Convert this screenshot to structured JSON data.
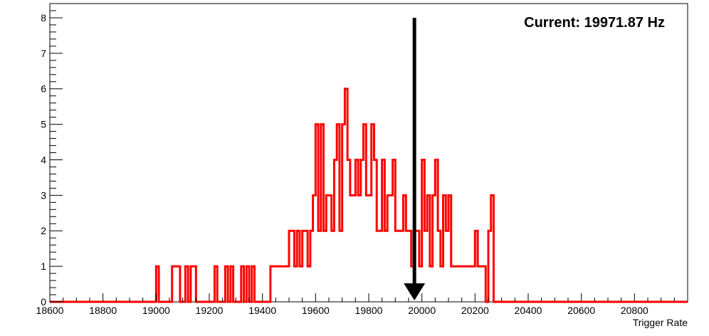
{
  "chart_data": {
    "type": "histogram",
    "title": "",
    "xlabel": "Trigger Rate",
    "ylabel": "",
    "xlim": [
      18600,
      21000
    ],
    "ylim": [
      0,
      8.4
    ],
    "x_ticks": [
      18600,
      18800,
      19000,
      19200,
      19400,
      19600,
      19800,
      20000,
      20200,
      20400,
      20600,
      20800
    ],
    "y_ticks": [
      0,
      1,
      2,
      3,
      4,
      5,
      6,
      7,
      8
    ],
    "grid": false,
    "bin_width": 10,
    "series": [
      {
        "color": "#ff0000",
        "bins": [
          [
            19000,
            1
          ],
          [
            19060,
            1
          ],
          [
            19070,
            1
          ],
          [
            19080,
            1
          ],
          [
            19110,
            1
          ],
          [
            19130,
            1
          ],
          [
            19140,
            1
          ],
          [
            19220,
            1
          ],
          [
            19260,
            1
          ],
          [
            19280,
            1
          ],
          [
            19320,
            1
          ],
          [
            19340,
            1
          ],
          [
            19360,
            1
          ],
          [
            19430,
            1
          ],
          [
            19440,
            1
          ],
          [
            19450,
            1
          ],
          [
            19460,
            1
          ],
          [
            19470,
            1
          ],
          [
            19480,
            1
          ],
          [
            19490,
            1
          ],
          [
            19500,
            2
          ],
          [
            19510,
            2
          ],
          [
            19520,
            1
          ],
          [
            19530,
            2
          ],
          [
            19540,
            1
          ],
          [
            19550,
            2
          ],
          [
            19560,
            2
          ],
          [
            19570,
            1
          ],
          [
            19580,
            2
          ],
          [
            19590,
            3
          ],
          [
            19600,
            5
          ],
          [
            19610,
            2
          ],
          [
            19620,
            5
          ],
          [
            19630,
            2
          ],
          [
            19640,
            3
          ],
          [
            19650,
            3
          ],
          [
            19660,
            2
          ],
          [
            19670,
            4
          ],
          [
            19680,
            5
          ],
          [
            19690,
            2
          ],
          [
            19700,
            5
          ],
          [
            19710,
            6
          ],
          [
            19720,
            4
          ],
          [
            19730,
            3
          ],
          [
            19740,
            3
          ],
          [
            19750,
            4
          ],
          [
            19760,
            3
          ],
          [
            19770,
            4
          ],
          [
            19780,
            5
          ],
          [
            19790,
            3
          ],
          [
            19800,
            3
          ],
          [
            19810,
            5
          ],
          [
            19820,
            4
          ],
          [
            19830,
            2
          ],
          [
            19840,
            2
          ],
          [
            19850,
            4
          ],
          [
            19860,
            2
          ],
          [
            19870,
            3
          ],
          [
            19880,
            3
          ],
          [
            19890,
            4
          ],
          [
            19900,
            2
          ],
          [
            19910,
            2
          ],
          [
            19920,
            2
          ],
          [
            19930,
            3
          ],
          [
            19940,
            2
          ],
          [
            19950,
            2
          ],
          [
            19960,
            1
          ],
          [
            19970,
            2
          ],
          [
            19980,
            2
          ],
          [
            19990,
            1
          ],
          [
            20000,
            4
          ],
          [
            20010,
            2
          ],
          [
            20020,
            3
          ],
          [
            20030,
            1
          ],
          [
            20040,
            3
          ],
          [
            20050,
            4
          ],
          [
            20060,
            2
          ],
          [
            20070,
            1
          ],
          [
            20080,
            3
          ],
          [
            20090,
            2
          ],
          [
            20100,
            3
          ],
          [
            20110,
            1
          ],
          [
            20120,
            1
          ],
          [
            20130,
            1
          ],
          [
            20140,
            1
          ],
          [
            20150,
            1
          ],
          [
            20160,
            1
          ],
          [
            20170,
            1
          ],
          [
            20180,
            1
          ],
          [
            20190,
            1
          ],
          [
            20200,
            2
          ],
          [
            20210,
            1
          ],
          [
            20220,
            1
          ],
          [
            20230,
            1
          ],
          [
            20250,
            2
          ],
          [
            20260,
            3
          ]
        ]
      }
    ],
    "marker": {
      "x": 19971.87,
      "y_top": 8,
      "label": "Current: 19971.87 Hz",
      "color": "#000000"
    }
  }
}
